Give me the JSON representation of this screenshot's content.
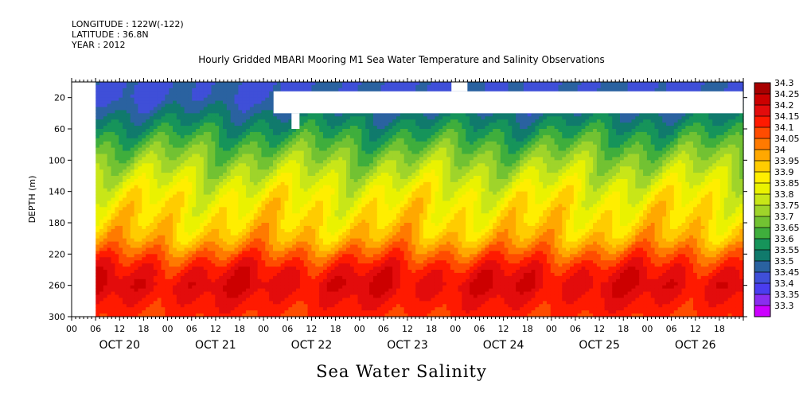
{
  "header": {
    "longitude": "LONGITUDE : 122W(-122)",
    "latitude": "LATITUDE : 36.8N",
    "year": "YEAR : 2012"
  },
  "chart_data": {
    "type": "heatmap",
    "title": "Hourly Gridded MBARI Mooring M1 Sea Water Temperature and Salinity Observations",
    "xlabel": "Sea Water Salinity",
    "ylabel": "DEPTH (m)",
    "ylim": [
      300,
      0
    ],
    "yticks": [
      20,
      60,
      100,
      140,
      180,
      220,
      260,
      300
    ],
    "x_hour_ticks": [
      "00",
      "06",
      "12",
      "18",
      "00",
      "06",
      "12",
      "18",
      "00",
      "06",
      "12",
      "18",
      "00",
      "06",
      "12",
      "18",
      "00",
      "06",
      "12",
      "18",
      "00",
      "06",
      "12",
      "18",
      "00",
      "06",
      "12",
      "18"
    ],
    "x_day_labels": [
      "OCT 20",
      "OCT 21",
      "OCT 22",
      "OCT 23",
      "OCT 24",
      "OCT 25",
      "OCT 26"
    ],
    "x_range_hours": [
      0,
      168
    ],
    "data_start_hour": 6,
    "colorbar_levels": [
      "34.3",
      "34.25",
      "34.2",
      "34.15",
      "34.1",
      "34.05",
      "34",
      "33.95",
      "33.9",
      "33.85",
      "33.8",
      "33.75",
      "33.7",
      "33.65",
      "33.6",
      "33.55",
      "33.5",
      "33.45",
      "33.4",
      "33.35",
      "33.3"
    ],
    "colors": [
      "#a80000",
      "#cc0000",
      "#e30c0c",
      "#ff1a00",
      "#ff4c00",
      "#ff7a00",
      "#ffa800",
      "#ffcc00",
      "#ffee00",
      "#eaf200",
      "#c8e618",
      "#9fd42a",
      "#72c232",
      "#3fae3c",
      "#16945a",
      "#107a6c",
      "#2a62a0",
      "#3f4fd8",
      "#4a3df0",
      "#8a2df0",
      "#cc00ff"
    ],
    "depth_profile": [
      {
        "depth": 0,
        "salinity": 33.47
      },
      {
        "depth": 20,
        "salinity": 33.47
      },
      {
        "depth": 40,
        "salinity": 33.53
      },
      {
        "depth": 60,
        "salinity": 33.6
      },
      {
        "depth": 80,
        "salinity": 33.67
      },
      {
        "depth": 100,
        "salinity": 33.74
      },
      {
        "depth": 120,
        "salinity": 33.8
      },
      {
        "depth": 140,
        "salinity": 33.86
      },
      {
        "depth": 160,
        "salinity": 33.9
      },
      {
        "depth": 180,
        "salinity": 33.93
      },
      {
        "depth": 200,
        "salinity": 33.98
      },
      {
        "depth": 220,
        "salinity": 34.08
      },
      {
        "depth": 240,
        "salinity": 34.17
      },
      {
        "depth": 260,
        "salinity": 34.21
      },
      {
        "depth": 280,
        "salinity": 34.17
      },
      {
        "depth": 300,
        "salinity": 34.13
      }
    ],
    "missing_data": [
      {
        "hour_start": 0,
        "hour_end": 6,
        "depth_top": 0,
        "depth_bottom": 300
      },
      {
        "hour_start": 50.5,
        "hour_end": 168,
        "depth_top": 12,
        "depth_bottom": 40
      },
      {
        "hour_start": 95,
        "hour_end": 99,
        "depth_top": 0,
        "depth_bottom": 12
      },
      {
        "hour_start": 55,
        "hour_end": 57,
        "depth_top": 40,
        "depth_bottom": 60
      }
    ]
  }
}
